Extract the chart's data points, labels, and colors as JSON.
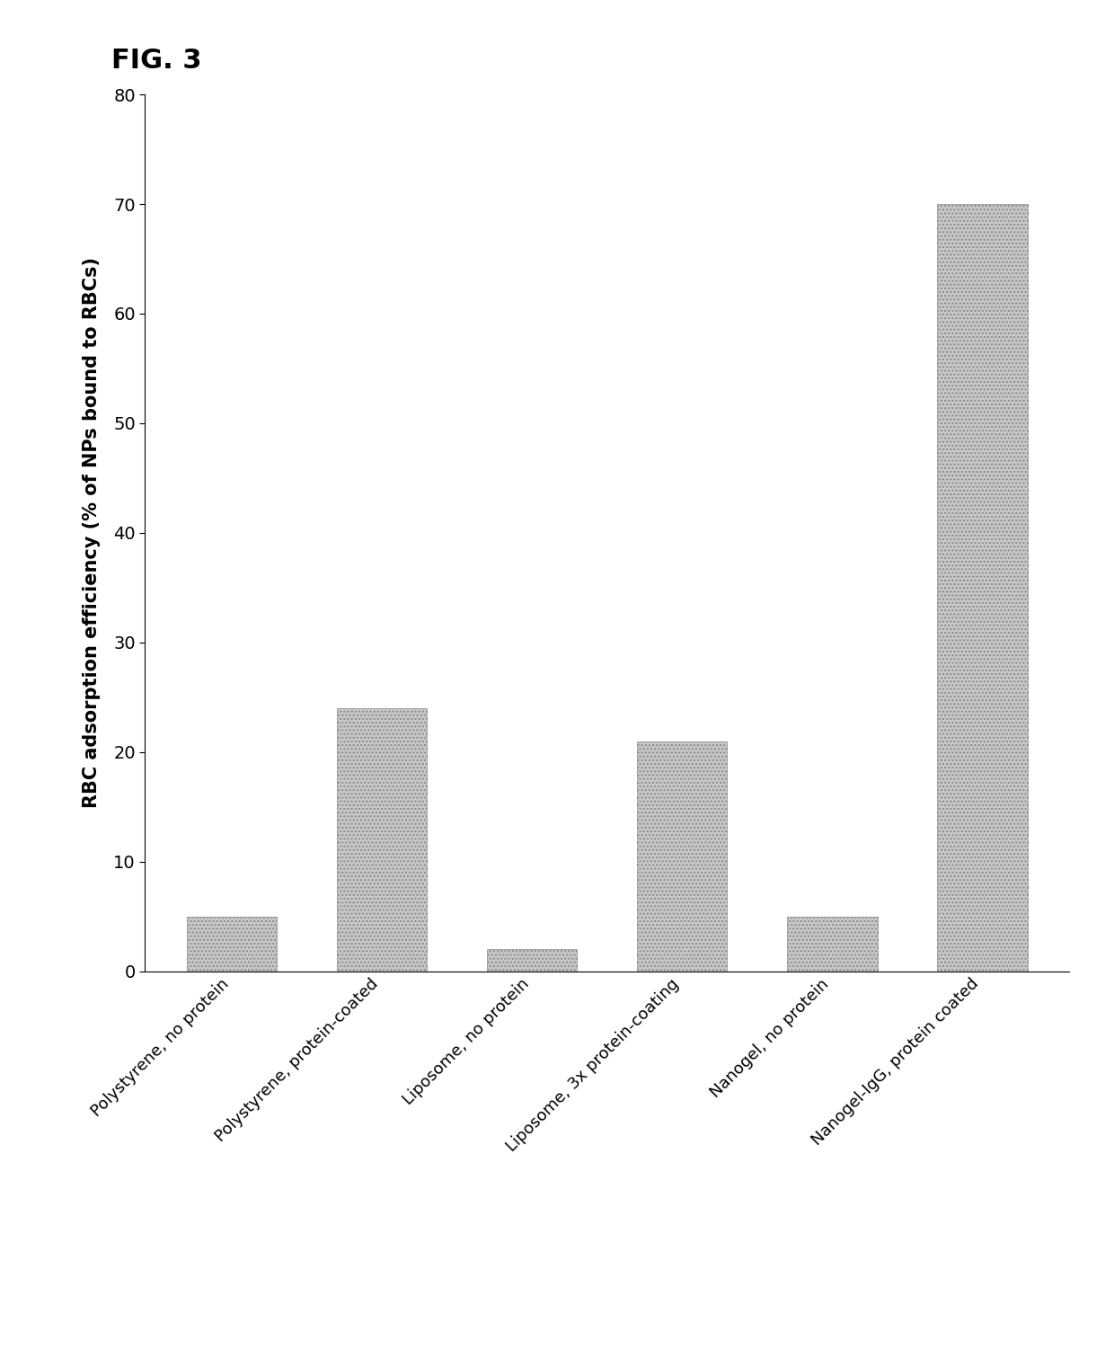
{
  "title": "FIG. 3",
  "categories": [
    "Polystyrene, no protein",
    "Polystyrene, protein-coated",
    "Liposome, no protein",
    "Liposome, 3x protein-coating",
    "Nanogel, no protein",
    "Nanogel-IgG, protein coated"
  ],
  "values": [
    5.0,
    24.0,
    2.0,
    21.0,
    5.0,
    70.0
  ],
  "bar_color": "#c8c8c8",
  "bar_edgecolor": "#888888",
  "hatch": "....",
  "ylabel": "RBC adsorption efficiency (% of NPs bound to RBCs)",
  "ylim": [
    0,
    80
  ],
  "yticks": [
    0,
    10,
    20,
    30,
    40,
    50,
    60,
    70,
    80
  ],
  "background_color": "#ffffff",
  "title_fontsize": 22,
  "ylabel_fontsize": 15,
  "tick_fontsize": 14,
  "xlabel_fontsize": 13
}
